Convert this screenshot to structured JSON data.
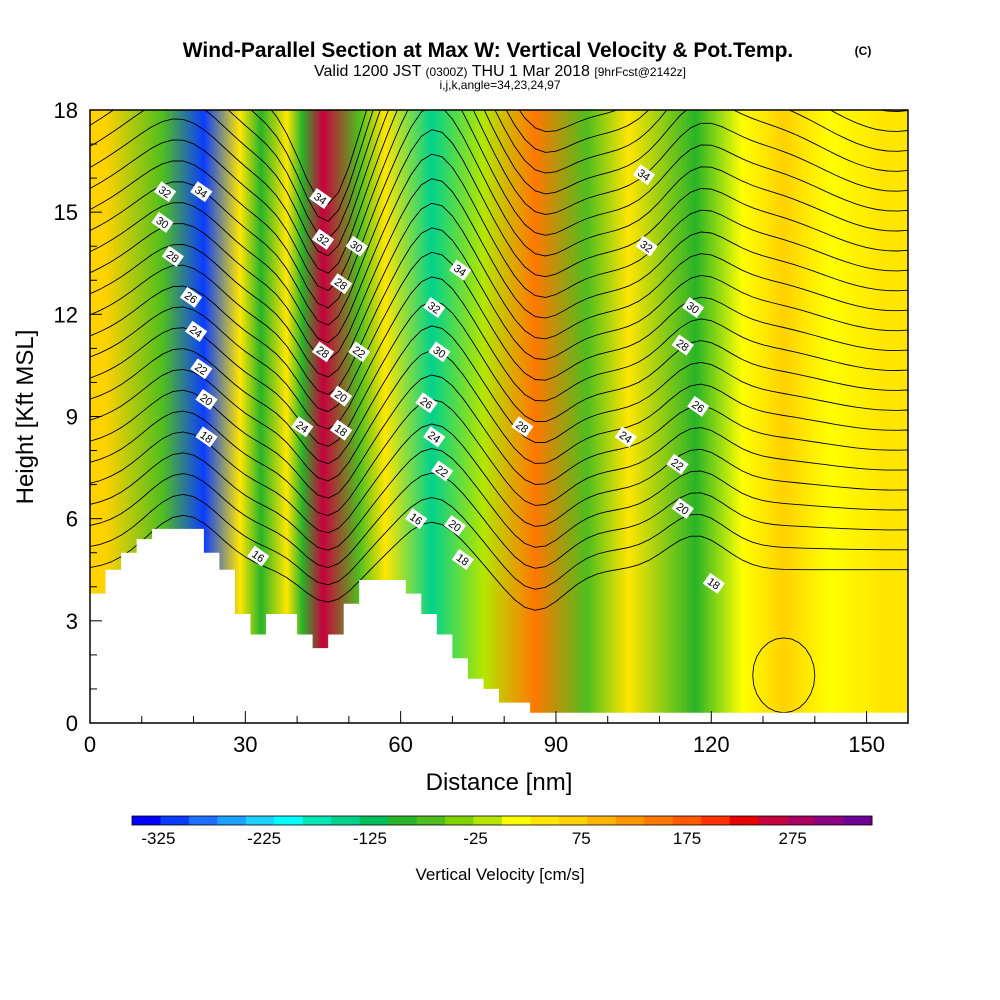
{
  "header": {
    "title": "Wind-Parallel Section at Max W: Vertical Velocity & Pot.Temp.",
    "copyright": "(C)",
    "valid_prefix": "Valid 1200 JST",
    "valid_utc": "(0300Z)",
    "valid_date": "THU 1 Mar 2018",
    "forecast": "[9hrFcst@2142z]",
    "indices": "i,j,k,angle=34,23,24,97"
  },
  "chart_data": {
    "type": "heatmap",
    "xlabel": "Distance [nm]",
    "ylabel": "Height [Kft MSL]",
    "xlim": [
      0,
      158
    ],
    "ylim": [
      0,
      18
    ],
    "x_ticks": [
      "0",
      "30",
      "60",
      "90",
      "120",
      "150"
    ],
    "y_ticks": [
      "0",
      "3",
      "6",
      "9",
      "12",
      "15",
      "18"
    ],
    "colorbar": {
      "label": "Vertical Velocity [cm/s]",
      "tick_labels": [
        "-325",
        "-225",
        "-125",
        "-25",
        "75",
        "175",
        "275"
      ],
      "tick_values": [
        -325,
        -225,
        -125,
        -25,
        75,
        175,
        275
      ],
      "range": [
        -350,
        350
      ],
      "colors": [
        "#0000ff",
        "#0a3cff",
        "#1e6eff",
        "#1ea0ff",
        "#1ed2ff",
        "#00ffff",
        "#00e6b4",
        "#00d28c",
        "#00be5a",
        "#28b428",
        "#50be1e",
        "#82d200",
        "#b4e600",
        "#ffff00",
        "#ffe600",
        "#ffd200",
        "#ffb400",
        "#ff9600",
        "#ff7800",
        "#ff5a00",
        "#ff3200",
        "#e60000",
        "#c8003c",
        "#aa0064",
        "#8c0082",
        "#6e0096"
      ]
    },
    "velocity_bands_cm_s": [
      {
        "x": 3,
        "w": 60
      },
      {
        "x": 14,
        "w": -60
      },
      {
        "x": 22,
        "w": -310
      },
      {
        "x": 29,
        "w": 40
      },
      {
        "x": 33,
        "w": -100
      },
      {
        "x": 38,
        "w": 40
      },
      {
        "x": 41,
        "w": -90
      },
      {
        "x": 45,
        "w": 260
      },
      {
        "x": 52,
        "w": -60
      },
      {
        "x": 57,
        "w": 40
      },
      {
        "x": 66,
        "w": -160
      },
      {
        "x": 76,
        "w": -20
      },
      {
        "x": 86,
        "w": 140
      },
      {
        "x": 96,
        "w": -60
      },
      {
        "x": 104,
        "w": 30
      },
      {
        "x": 117,
        "w": -100
      },
      {
        "x": 126,
        "w": 0
      },
      {
        "x": 134,
        "w": 60
      },
      {
        "x": 143,
        "w": 0
      },
      {
        "x": 153,
        "w": 40
      }
    ],
    "theta_contour_labels": [
      {
        "text": "34",
        "x": 21.5,
        "y": 15.6
      },
      {
        "text": "32",
        "x": 14.5,
        "y": 15.6
      },
      {
        "text": "30",
        "x": 14.0,
        "y": 14.7
      },
      {
        "text": "28",
        "x": 16.0,
        "y": 13.7
      },
      {
        "text": "26",
        "x": 19.5,
        "y": 12.5
      },
      {
        "text": "24",
        "x": 20.5,
        "y": 11.5
      },
      {
        "text": "22",
        "x": 21.5,
        "y": 10.4
      },
      {
        "text": "20",
        "x": 22.5,
        "y": 9.5
      },
      {
        "text": "18",
        "x": 22.5,
        "y": 8.4
      },
      {
        "text": "16",
        "x": 32.5,
        "y": 4.9
      },
      {
        "text": "34",
        "x": 44.5,
        "y": 15.4
      },
      {
        "text": "32",
        "x": 45.0,
        "y": 14.2
      },
      {
        "text": "30",
        "x": 51.5,
        "y": 14.0
      },
      {
        "text": "28",
        "x": 48.5,
        "y": 12.9
      },
      {
        "text": "28",
        "x": 45.0,
        "y": 10.9
      },
      {
        "text": "22",
        "x": 52.0,
        "y": 10.9
      },
      {
        "text": "20",
        "x": 48.5,
        "y": 9.6
      },
      {
        "text": "18",
        "x": 48.5,
        "y": 8.6
      },
      {
        "text": "24",
        "x": 41.0,
        "y": 8.7
      },
      {
        "text": "34",
        "x": 71.5,
        "y": 13.3
      },
      {
        "text": "32",
        "x": 66.5,
        "y": 12.2
      },
      {
        "text": "30",
        "x": 67.5,
        "y": 10.9
      },
      {
        "text": "26",
        "x": 65.0,
        "y": 9.4
      },
      {
        "text": "24",
        "x": 66.5,
        "y": 8.4
      },
      {
        "text": "22",
        "x": 68.0,
        "y": 7.4
      },
      {
        "text": "16",
        "x": 63.0,
        "y": 6.0
      },
      {
        "text": "20",
        "x": 70.5,
        "y": 5.8
      },
      {
        "text": "18",
        "x": 72.0,
        "y": 4.8
      },
      {
        "text": "28",
        "x": 83.5,
        "y": 8.7
      },
      {
        "text": "34",
        "x": 107.0,
        "y": 16.1
      },
      {
        "text": "32",
        "x": 107.5,
        "y": 14.0
      },
      {
        "text": "30",
        "x": 116.5,
        "y": 12.2
      },
      {
        "text": "28",
        "x": 114.5,
        "y": 11.1
      },
      {
        "text": "26",
        "x": 117.5,
        "y": 9.3
      },
      {
        "text": "24",
        "x": 103.5,
        "y": 8.4
      },
      {
        "text": "22",
        "x": 113.5,
        "y": 7.6
      },
      {
        "text": "20",
        "x": 114.5,
        "y": 6.3
      },
      {
        "text": "18",
        "x": 120.5,
        "y": 4.1
      }
    ],
    "terrain_profile": [
      {
        "x": 0,
        "y": 3.8
      },
      {
        "x": 3,
        "y": 4.5
      },
      {
        "x": 6,
        "y": 5.0
      },
      {
        "x": 9,
        "y": 5.4
      },
      {
        "x": 12,
        "y": 5.7
      },
      {
        "x": 19,
        "y": 5.7
      },
      {
        "x": 22,
        "y": 5.0
      },
      {
        "x": 25,
        "y": 4.5
      },
      {
        "x": 28,
        "y": 3.2
      },
      {
        "x": 31,
        "y": 2.6
      },
      {
        "x": 34,
        "y": 3.2
      },
      {
        "x": 40,
        "y": 2.6
      },
      {
        "x": 43,
        "y": 2.2
      },
      {
        "x": 46,
        "y": 2.6
      },
      {
        "x": 49,
        "y": 3.5
      },
      {
        "x": 52,
        "y": 4.2
      },
      {
        "x": 61,
        "y": 3.8
      },
      {
        "x": 64,
        "y": 3.2
      },
      {
        "x": 67,
        "y": 2.6
      },
      {
        "x": 70,
        "y": 1.9
      },
      {
        "x": 73,
        "y": 1.3
      },
      {
        "x": 76,
        "y": 1.0
      },
      {
        "x": 79,
        "y": 0.6
      },
      {
        "x": 85,
        "y": 0.3
      },
      {
        "x": 158,
        "y": 0.3
      }
    ]
  }
}
